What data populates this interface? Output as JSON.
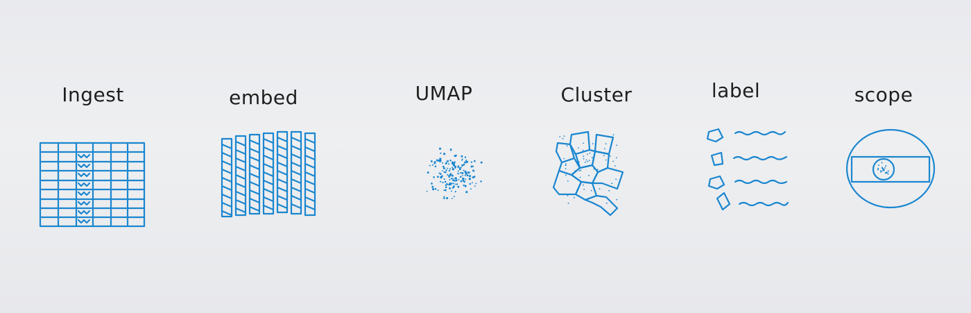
{
  "steps": [
    {
      "label": "Ingest",
      "icon": "table-icon"
    },
    {
      "label": "embed",
      "icon": "embedding-columns-icon"
    },
    {
      "label": "UMAP",
      "icon": "scatter-points-icon"
    },
    {
      "label": "Cluster",
      "icon": "cluster-polygons-icon"
    },
    {
      "label": "label",
      "icon": "labeled-list-icon"
    },
    {
      "label": "scope",
      "icon": "scope-target-icon"
    }
  ],
  "colors": {
    "ink": "#1a86cf",
    "text": "#1f1f1f",
    "paper": "#eceef0"
  }
}
